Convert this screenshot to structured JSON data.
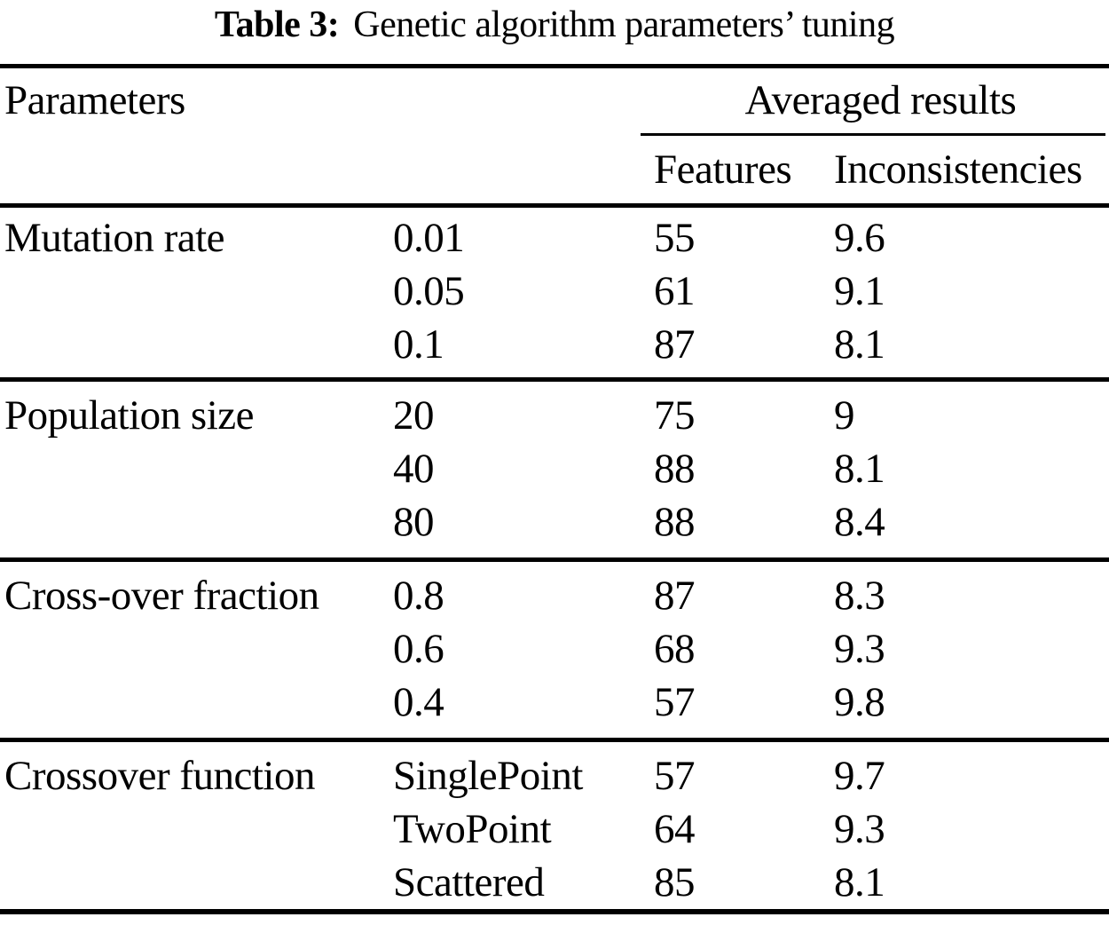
{
  "caption": {
    "label": "Table 3:",
    "text": "Genetic algorithm parameters’ tuning"
  },
  "header": {
    "parameters": "Parameters",
    "averaged_results": "Averaged results",
    "features": "Features",
    "inconsistencies": "Inconsistencies"
  },
  "sections": [
    {
      "name": "Mutation rate",
      "rows": [
        {
          "value": "0.01",
          "features": "55",
          "inconsistencies": "9.6"
        },
        {
          "value": "0.05",
          "features": "61",
          "inconsistencies": "9.1"
        },
        {
          "value": "0.1",
          "features": "87",
          "inconsistencies": "8.1"
        }
      ]
    },
    {
      "name": "Population size",
      "rows": [
        {
          "value": "20",
          "features": "75",
          "inconsistencies": "9"
        },
        {
          "value": "40",
          "features": "88",
          "inconsistencies": "8.1"
        },
        {
          "value": "80",
          "features": "88",
          "inconsistencies": "8.4"
        }
      ]
    },
    {
      "name": "Cross-over fraction",
      "rows": [
        {
          "value": "0.8",
          "features": "87",
          "inconsistencies": "8.3"
        },
        {
          "value": "0.6",
          "features": "68",
          "inconsistencies": "9.3"
        },
        {
          "value": "0.4",
          "features": "57",
          "inconsistencies": "9.8"
        }
      ]
    },
    {
      "name": "Crossover function",
      "rows": [
        {
          "value": "SinglePoint",
          "features": "57",
          "inconsistencies": "9.7"
        },
        {
          "value": "TwoPoint",
          "features": "64",
          "inconsistencies": "9.3"
        },
        {
          "value": "Scattered",
          "features": "85",
          "inconsistencies": "8.1"
        }
      ]
    }
  ]
}
